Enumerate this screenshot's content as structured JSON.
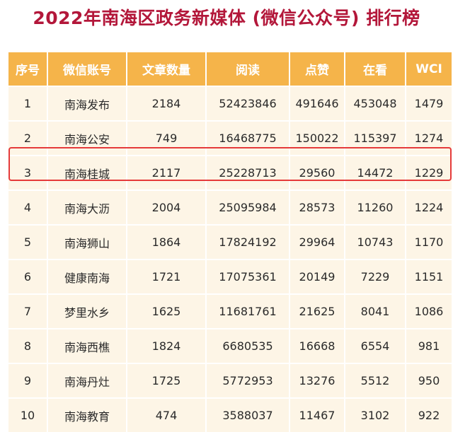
{
  "title": "2022年南海区政务新媒体 (微信公众号) 排行榜",
  "highlight_color": "#e53a3a",
  "header_color": "#f5b44a",
  "chart_data": {
    "type": "table",
    "title": "2022年南海区政务新媒体 (微信公众号) 排行榜",
    "columns": [
      "序号",
      "微信账号",
      "文章数量",
      "阅读",
      "点赞",
      "在看",
      "WCI"
    ],
    "rows": [
      [
        "1",
        "南海发布",
        "2184",
        "52423846",
        "491646",
        "453048",
        "1479"
      ],
      [
        "2",
        "南海公安",
        "749",
        "16468775",
        "150022",
        "115397",
        "1274"
      ],
      [
        "3",
        "南海桂城",
        "2117",
        "25228713",
        "29560",
        "14472",
        "1229"
      ],
      [
        "4",
        "南海大沥",
        "2004",
        "25095984",
        "28573",
        "11260",
        "1224"
      ],
      [
        "5",
        "南海狮山",
        "1864",
        "17824192",
        "29964",
        "10743",
        "1170"
      ],
      [
        "6",
        "健康南海",
        "1721",
        "17075361",
        "20149",
        "7229",
        "1151"
      ],
      [
        "7",
        "梦里水乡",
        "1625",
        "11681761",
        "21625",
        "8041",
        "1086"
      ],
      [
        "8",
        "南海西樵",
        "1824",
        "6680535",
        "16668",
        "6554",
        "981"
      ],
      [
        "9",
        "南海丹灶",
        "1725",
        "5772953",
        "13276",
        "5512",
        "950"
      ],
      [
        "10",
        "南海教育",
        "474",
        "3588037",
        "11467",
        "3102",
        "922"
      ]
    ],
    "highlighted_row": 3
  }
}
